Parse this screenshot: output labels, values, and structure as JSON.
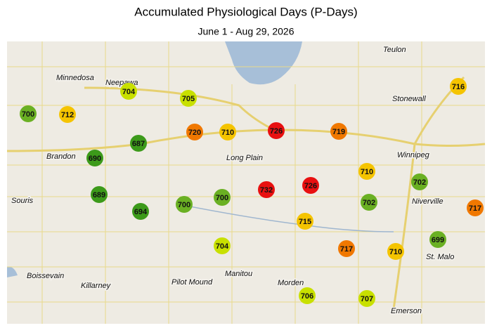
{
  "header": {
    "title": "Accumulated Physiological Days (P-Days)",
    "subtitle": "June 1 - Aug 29, 2026"
  },
  "places": [
    "Teulon",
    "Minnedosa",
    "Neepawa",
    "Stonewall",
    "Winnipeg",
    "Brandon",
    "Long Plain",
    "Souris",
    "Niverville",
    "St. Malo",
    "Boissevain",
    "Killarney",
    "Pilot Mound",
    "Manitou",
    "Morden",
    "Emerson"
  ],
  "stations": [
    {
      "value": 700,
      "color": "#6ab023"
    },
    {
      "value": 712,
      "color": "#f5c400"
    },
    {
      "value": 704,
      "color": "#c8e000"
    },
    {
      "value": 705,
      "color": "#c8e000"
    },
    {
      "value": 720,
      "color": "#f07800"
    },
    {
      "value": 710,
      "color": "#f5c400"
    },
    {
      "value": 726,
      "color": "#e81010"
    },
    {
      "value": 719,
      "color": "#f07800"
    },
    {
      "value": 716,
      "color": "#f5c400"
    },
    {
      "value": 687,
      "color": "#3c9a1a"
    },
    {
      "value": 690,
      "color": "#3c9a1a"
    },
    {
      "value": 689,
      "color": "#3c9a1a"
    },
    {
      "value": 694,
      "color": "#3c9a1a"
    },
    {
      "value": 700,
      "color": "#6ab023"
    },
    {
      "value": 700,
      "color": "#6ab023"
    },
    {
      "value": 732,
      "color": "#e81010"
    },
    {
      "value": 726,
      "color": "#e81010"
    },
    {
      "value": 710,
      "color": "#f5c400"
    },
    {
      "value": 702,
      "color": "#6ab023"
    },
    {
      "value": 702,
      "color": "#6ab023"
    },
    {
      "value": 715,
      "color": "#f5c400"
    },
    {
      "value": 717,
      "color": "#f07800"
    },
    {
      "value": 699,
      "color": "#6ab023"
    },
    {
      "value": 704,
      "color": "#c8e000"
    },
    {
      "value": 717,
      "color": "#f07800"
    },
    {
      "value": 710,
      "color": "#f5c400"
    },
    {
      "value": 706,
      "color": "#c8e000"
    },
    {
      "value": 707,
      "color": "#c8e000"
    }
  ]
}
